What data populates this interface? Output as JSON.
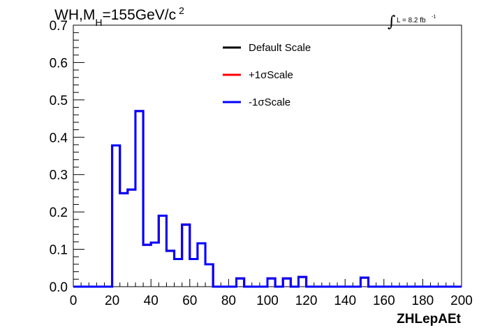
{
  "title": {
    "main": "WH,M",
    "subscript": "H",
    "value": "=155GeV/c",
    "superscript": "2"
  },
  "luminosity": {
    "integral": "∫",
    "text": "L = 8.2 fb",
    "superscript": "-1"
  },
  "chart_data": {
    "type": "line",
    "xlabel": "ZHLepAEt",
    "ylabel": "",
    "xlim": [
      0,
      200
    ],
    "ylim": [
      0,
      0.7
    ],
    "x_ticks": [
      "0",
      "20",
      "40",
      "60",
      "80",
      "100",
      "120",
      "140",
      "160",
      "180",
      "200"
    ],
    "y_ticks": [
      "0.0",
      "0.1",
      "0.2",
      "0.3",
      "0.4",
      "0.5",
      "0.6",
      "0.7"
    ],
    "bin_width": 4,
    "bin_edges_start": 0,
    "series": [
      {
        "name": "Default Scale",
        "color": "#000000",
        "values": [
          0,
          0,
          0,
          0,
          0,
          0.378,
          0.25,
          0.26,
          0.47,
          0.112,
          0.118,
          0.19,
          0.096,
          0.074,
          0.166,
          0.074,
          0.116,
          0.06,
          0,
          0,
          0,
          0.022,
          0,
          0,
          0,
          0.022,
          0,
          0.022,
          0,
          0.026,
          0,
          0,
          0,
          0,
          0,
          0,
          0,
          0.024,
          0,
          0,
          0,
          0,
          0,
          0,
          0,
          0,
          0,
          0,
          0,
          0
        ]
      },
      {
        "name": "+1σScale",
        "color": "#ff0000",
        "values": [
          0,
          0,
          0,
          0,
          0,
          0.378,
          0.25,
          0.26,
          0.47,
          0.112,
          0.118,
          0.19,
          0.096,
          0.074,
          0.166,
          0.074,
          0.116,
          0.06,
          0,
          0,
          0,
          0.022,
          0,
          0,
          0,
          0.022,
          0,
          0.022,
          0,
          0.026,
          0,
          0,
          0,
          0,
          0,
          0,
          0,
          0.024,
          0,
          0,
          0,
          0,
          0,
          0,
          0,
          0,
          0,
          0,
          0,
          0
        ]
      },
      {
        "name": "-1σScale",
        "color": "#0000ff",
        "values": [
          0,
          0,
          0,
          0,
          0,
          0.378,
          0.25,
          0.26,
          0.47,
          0.112,
          0.118,
          0.19,
          0.096,
          0.074,
          0.166,
          0.074,
          0.116,
          0.06,
          0,
          0,
          0,
          0.022,
          0,
          0,
          0,
          0.022,
          0,
          0.022,
          0,
          0.026,
          0,
          0,
          0,
          0,
          0,
          0,
          0,
          0.024,
          0,
          0,
          0,
          0,
          0,
          0,
          0,
          0,
          0,
          0,
          0,
          0
        ]
      }
    ],
    "legend": {
      "placement": "top-center",
      "entries": [
        "Default Scale",
        "+1σScale",
        "-1σScale"
      ]
    },
    "grid": false
  }
}
